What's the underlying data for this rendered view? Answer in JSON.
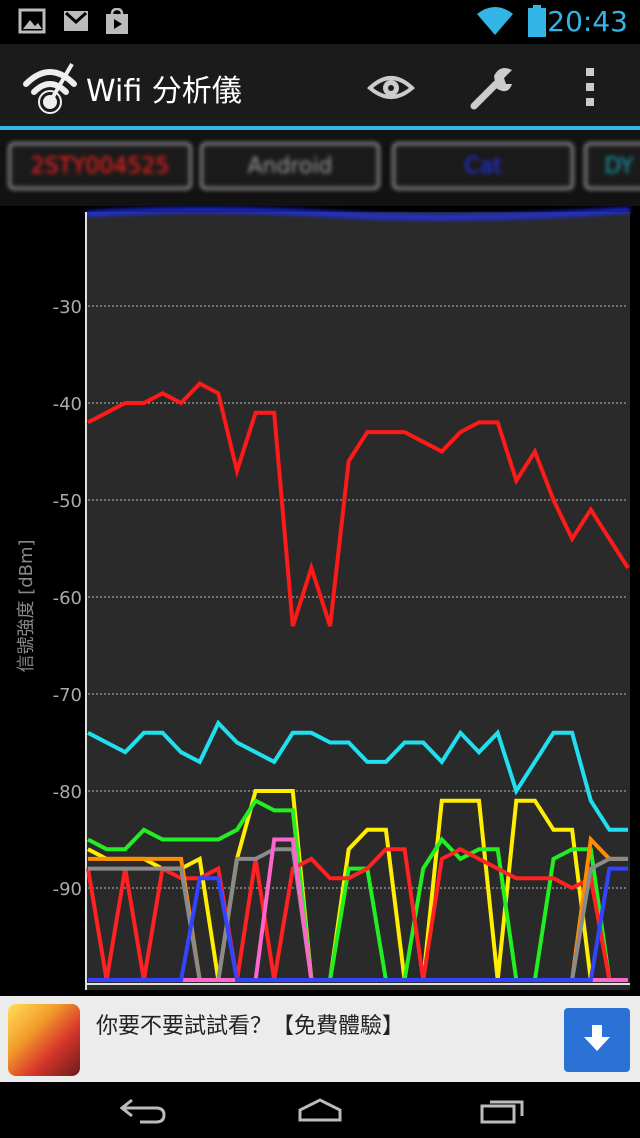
{
  "status_bar": {
    "time": "20:43",
    "left_icons": [
      "image-icon",
      "gmail-icon",
      "play-store-icon"
    ],
    "right_icons": [
      "wifi-signal-icon",
      "battery-icon"
    ],
    "accent": "#33b5e5"
  },
  "action_bar": {
    "title": "Wifi 分析儀",
    "actions": [
      "eye-icon",
      "wrench-icon",
      "overflow-menu-icon"
    ]
  },
  "tabs": [
    {
      "label": "2STY004525",
      "color": "#ff2020"
    },
    {
      "label": "Android",
      "color": "#9a9a9a"
    },
    {
      "label": "Cat",
      "color": "#2233ff"
    },
    {
      "label": "DY",
      "color": "#1aa0b0"
    }
  ],
  "chart_data": {
    "type": "line",
    "ylabel": "信號強度 [dBm]",
    "yticks": [
      -30,
      -40,
      -50,
      -60,
      -70,
      -80,
      -90
    ],
    "ylim": [
      -100,
      -20
    ],
    "grid": true,
    "series": [
      {
        "color": "#ff1a1a",
        "values": [
          -42,
          -41,
          -40,
          -40,
          -39,
          -40,
          -38,
          -39,
          -47,
          -41,
          -41,
          -63,
          -57,
          -63,
          -46,
          -43,
          -43,
          -43,
          -44,
          -45,
          -43,
          -42,
          -42,
          -48,
          -45,
          -50,
          -54,
          -51,
          -54,
          -57
        ]
      },
      {
        "color": "#20e0f0",
        "values": [
          -74,
          -75,
          -76,
          -74,
          -74,
          -76,
          -77,
          -73,
          -75,
          -76,
          -77,
          -74,
          -74,
          -75,
          -75,
          -77,
          -77,
          -75,
          -75,
          -77,
          -74,
          -76,
          -74,
          -80,
          -77,
          -74,
          -74,
          -81,
          -84,
          -84
        ]
      },
      {
        "color": "#ffee00",
        "values": [
          -86,
          -87,
          -87,
          -87,
          -88,
          -88,
          -87,
          -100,
          -87,
          -80,
          -80,
          -80,
          -100,
          -100,
          -86,
          -84,
          -84,
          -100,
          -100,
          -81,
          -81,
          -81,
          -100,
          -81,
          -81,
          -84,
          -84,
          -100,
          -100,
          -100
        ]
      },
      {
        "color": "#22ee22",
        "values": [
          -85,
          -86,
          -86,
          -84,
          -85,
          -85,
          -85,
          -85,
          -84,
          -81,
          -82,
          -82,
          -100,
          -100,
          -88,
          -88,
          -100,
          -100,
          -88,
          -85,
          -87,
          -86,
          -86,
          -100,
          -100,
          -87,
          -86,
          -86,
          -100,
          -100
        ]
      },
      {
        "color": "#ff2222",
        "values": [
          -88,
          -100,
          -88,
          -100,
          -88,
          -89,
          -89,
          -88,
          -100,
          -87,
          -100,
          -88,
          -87,
          -89,
          -89,
          -88,
          -86,
          -86,
          -100,
          -87,
          -86,
          -87,
          -88,
          -89,
          -89,
          -89,
          -90,
          -89,
          -100,
          -100
        ]
      },
      {
        "color": "#ff8c00",
        "values": [
          -87,
          -87,
          -87,
          -87,
          -87,
          -87,
          -100,
          -100,
          -100,
          -100,
          -100,
          -100,
          -100,
          -100,
          -100,
          -100,
          -100,
          -100,
          -100,
          -100,
          -100,
          -100,
          -100,
          -100,
          -100,
          -100,
          -100,
          -85,
          -87,
          -87
        ]
      },
      {
        "color": "#8a8a8a",
        "values": [
          -88,
          -88,
          -88,
          -88,
          -88,
          -88,
          -100,
          -100,
          -87,
          -87,
          -86,
          -86,
          -100,
          -100,
          -100,
          -100,
          -100,
          -100,
          -100,
          -100,
          -100,
          -100,
          -100,
          -100,
          -100,
          -100,
          -100,
          -88,
          -87,
          -87
        ]
      },
      {
        "color": "#ff66cc",
        "values": [
          -100,
          -100,
          -100,
          -100,
          -100,
          -100,
          -100,
          -100,
          -100,
          -100,
          -85,
          -85,
          -100,
          -100,
          -100,
          -100,
          -100,
          -100,
          -100,
          -100,
          -100,
          -100,
          -100,
          -100,
          -100,
          -100,
          -100,
          -100,
          -100,
          -100
        ]
      },
      {
        "color": "#3344ff",
        "values": [
          -100,
          -100,
          -100,
          -100,
          -100,
          -100,
          -89,
          -89,
          -100,
          -100,
          -100,
          -100,
          -100,
          -100,
          -100,
          -100,
          -100,
          -100,
          -100,
          -100,
          -100,
          -100,
          -100,
          -100,
          -100,
          -100,
          -100,
          -100,
          -88,
          -88
        ]
      }
    ]
  },
  "ad": {
    "text": "你要不要試試看？【免費體驗】",
    "button_icon": "download-arrow-icon"
  },
  "nav_bar": {
    "buttons": [
      "back-icon",
      "home-icon",
      "recents-icon"
    ]
  }
}
